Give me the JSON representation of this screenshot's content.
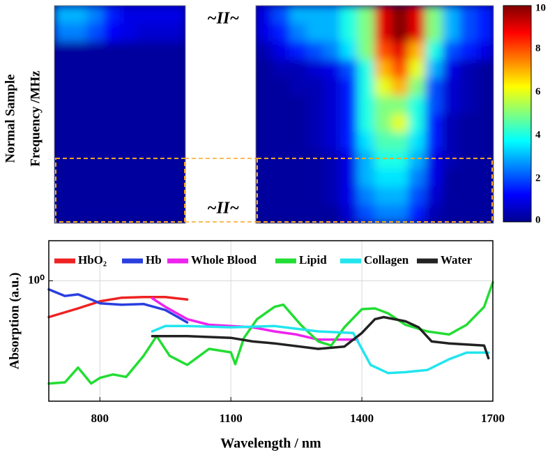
{
  "chart_data": [
    {
      "type": "heatmap",
      "ylabel": [
        "Normal Sample",
        "Frequency /MHz"
      ],
      "annotations": [
        "~II~",
        "~II~"
      ],
      "zlim": [
        0,
        10
      ],
      "zticks": [
        0,
        2,
        4,
        6,
        8,
        10
      ],
      "highlight_color": "#f5a623",
      "z": [
        [
          [
            3,
            3,
            2.5,
            1.5,
            1,
            1,
            1,
            1
          ],
          [
            2.5,
            2.5,
            2,
            1.2,
            1,
            0.8,
            0.8,
            0.8
          ],
          [
            0.3,
            0.3,
            0.3,
            0.3,
            0.3,
            0.3,
            0.3,
            0.3
          ],
          [
            0.3,
            0.3,
            0.3,
            0.3,
            0.3,
            0.3,
            0.3,
            0.3
          ],
          [
            0.3,
            0.3,
            0.3,
            0.3,
            0.3,
            0.3,
            0.3,
            0.3
          ],
          [
            0.3,
            0.3,
            0.3,
            0.3,
            0.3,
            0.3,
            0.3,
            0.3
          ],
          [
            0.3,
            0.3,
            0.3,
            0.3,
            0.3,
            0.3,
            0.3,
            0.3
          ],
          [
            0.3,
            0.3,
            0.3,
            0.3,
            0.3,
            0.3,
            0.3,
            0.3
          ],
          [
            0.3,
            0.3,
            0.3,
            0.3,
            0.3,
            0.3,
            0.3,
            0.3
          ],
          [
            0.3,
            0.3,
            0.3,
            0.3,
            0.3,
            0.3,
            0.3,
            0.3
          ],
          [
            0.3,
            0.3,
            0.3,
            0.3,
            0.3,
            0.3,
            0.3,
            0.3
          ],
          [
            0.3,
            0.3,
            0.3,
            0.3,
            0.3,
            0.3,
            0.3,
            0.3
          ]
        ],
        [
          [
            1,
            2,
            3,
            3,
            3,
            4,
            5,
            9,
            10,
            9,
            5,
            3,
            2,
            1.5
          ],
          [
            1,
            1.5,
            2.5,
            3,
            3,
            4,
            5,
            9,
            10,
            9,
            5,
            3,
            2,
            1.5
          ],
          [
            0.5,
            1,
            1.5,
            2,
            2.5,
            3.5,
            5,
            8,
            9,
            7,
            4,
            2,
            1.5,
            1
          ],
          [
            0.3,
            0.5,
            0.5,
            0.8,
            1,
            2,
            4,
            7,
            8,
            6,
            3,
            1,
            0.5,
            0.3
          ],
          [
            0.3,
            0.3,
            0.5,
            0.5,
            0.8,
            1.5,
            4,
            6,
            7,
            5,
            2,
            0.8,
            0.5,
            0.3
          ],
          [
            0.3,
            0.3,
            0.3,
            0.5,
            0.8,
            1.5,
            4,
            5,
            5,
            4,
            2,
            0.8,
            0.5,
            0.3
          ],
          [
            0.3,
            0.3,
            0.3,
            0.5,
            0.8,
            1.5,
            4,
            5,
            6,
            4,
            1.5,
            0.5,
            0.3,
            0.3
          ],
          [
            0.3,
            0.3,
            0.3,
            0.5,
            0.8,
            1.5,
            3.5,
            4.5,
            4.5,
            3.5,
            1.5,
            0.5,
            0.3,
            0.3
          ],
          [
            0.3,
            0.3,
            0.3,
            0.3,
            0.5,
            1,
            3,
            4,
            4,
            3,
            1,
            0.5,
            0.3,
            0.3
          ],
          [
            0.3,
            0.3,
            0.3,
            0.3,
            0.5,
            1,
            3,
            3.5,
            3.5,
            2.5,
            1,
            0.3,
            0.3,
            0.3
          ],
          [
            0.3,
            0.3,
            0.3,
            0.3,
            0.5,
            1,
            2.5,
            3,
            3,
            2,
            0.8,
            0.3,
            0.3,
            0.3
          ],
          [
            0.3,
            0.3,
            0.3,
            0.3,
            0.3,
            0.8,
            2,
            2.5,
            2.5,
            1.5,
            0.5,
            0.3,
            0.3,
            0.3
          ]
        ]
      ]
    },
    {
      "type": "line",
      "xlabel": "Wavelength / nm",
      "ylabel": "Absorption (a.u.)",
      "xlim": [
        683,
        1700
      ],
      "xticks": [
        800,
        1100,
        1400,
        1700
      ],
      "ylim": [
        0.037,
        3
      ],
      "yticks": [
        {
          "value": 1,
          "label": "10⁰"
        }
      ],
      "log_y": true,
      "grid": true,
      "legend": "top",
      "series": [
        {
          "name": "HbO₂",
          "color": "#ee2222",
          "x": [
            683,
            750,
            800,
            850,
            900,
            950,
            1000
          ],
          "values": [
            0.37,
            0.47,
            0.57,
            0.63,
            0.64,
            0.64,
            0.6
          ]
        },
        {
          "name": "Hb",
          "color": "#2a3ee0",
          "x": [
            683,
            720,
            750,
            780,
            800,
            850,
            900,
            950,
            1000
          ],
          "values": [
            0.79,
            0.66,
            0.69,
            0.6,
            0.54,
            0.52,
            0.53,
            0.45,
            0.32
          ]
        },
        {
          "name": "Whole Blood",
          "color": "#ee22ee",
          "x": [
            920,
            950,
            1000,
            1050,
            1100,
            1150,
            1200,
            1250,
            1300,
            1350,
            1390
          ],
          "values": [
            0.62,
            0.49,
            0.35,
            0.3,
            0.29,
            0.28,
            0.25,
            0.23,
            0.2,
            0.2,
            0.2
          ]
        },
        {
          "name": "Lipid",
          "color": "#22dd33",
          "x": [
            683,
            720,
            750,
            780,
            800,
            830,
            860,
            900,
            930,
            960,
            1000,
            1050,
            1100,
            1110,
            1130,
            1160,
            1200,
            1220,
            1260,
            1300,
            1330,
            1360,
            1400,
            1430,
            1460,
            1500,
            1550,
            1600,
            1640,
            1680,
            1700
          ],
          "values": [
            0.06,
            0.062,
            0.093,
            0.06,
            0.07,
            0.077,
            0.072,
            0.128,
            0.22,
            0.128,
            0.1,
            0.155,
            0.141,
            0.102,
            0.21,
            0.35,
            0.49,
            0.52,
            0.3,
            0.19,
            0.17,
            0.28,
            0.46,
            0.47,
            0.41,
            0.3,
            0.25,
            0.23,
            0.3,
            0.49,
            0.96
          ]
        },
        {
          "name": "Collagen",
          "color": "#22e5ee",
          "x": [
            920,
            950,
            1000,
            1100,
            1200,
            1300,
            1380,
            1400,
            1420,
            1460,
            1500,
            1550,
            1600,
            1640,
            1690
          ],
          "values": [
            0.25,
            0.29,
            0.29,
            0.28,
            0.29,
            0.25,
            0.24,
            0.155,
            0.1,
            0.08,
            0.082,
            0.087,
            0.117,
            0.14,
            0.14
          ]
        },
        {
          "name": "Water",
          "color": "#222222",
          "x": [
            920,
            1000,
            1100,
            1150,
            1200,
            1300,
            1360,
            1400,
            1430,
            1450,
            1500,
            1530,
            1560,
            1600,
            1680,
            1690
          ],
          "values": [
            0.22,
            0.22,
            0.21,
            0.19,
            0.18,
            0.155,
            0.165,
            0.24,
            0.35,
            0.37,
            0.33,
            0.28,
            0.19,
            0.18,
            0.17,
            0.12
          ]
        }
      ]
    }
  ]
}
